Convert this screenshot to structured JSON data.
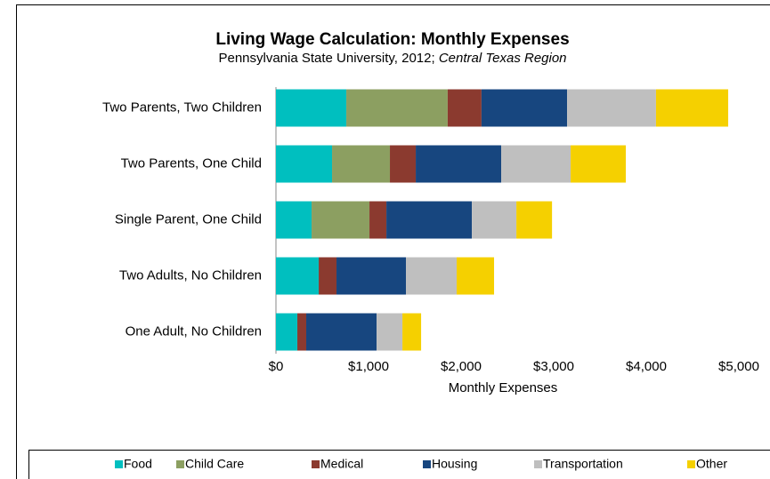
{
  "chart_data": {
    "type": "stacked-barh",
    "title": "Living Wage Calculation: Monthly Expenses",
    "subtitle": "Pennsylvania State University, 2012; ",
    "subtitle_region": "Central Texas Region",
    "xlabel": "Monthly Expenses",
    "categories": [
      "Two Parents, Two Children",
      "Two Parents, One Child",
      "Single Parent, One Child",
      "Two Adults, No Children",
      "One Adult, No Children"
    ],
    "series": [
      {
        "name": "Food",
        "color": "#00bfbf",
        "values": [
          760,
          606,
          385,
          462,
          231
        ]
      },
      {
        "name": "Child Care",
        "color": "#8c9f61",
        "values": [
          1095,
          625,
          625,
          0,
          0
        ]
      },
      {
        "name": "Medical",
        "color": "#8b3a2f",
        "values": [
          365,
          279,
          183,
          192,
          96
        ]
      },
      {
        "name": "Housing",
        "color": "#17467f",
        "values": [
          925,
          923,
          923,
          750,
          760
        ]
      },
      {
        "name": "Transportation",
        "color": "#bfbfbf",
        "values": [
          960,
          750,
          481,
          548,
          279
        ]
      },
      {
        "name": "Other",
        "color": "#f5d000",
        "values": [
          780,
          596,
          385,
          404,
          202
        ]
      }
    ],
    "xlim": [
      0,
      5000
    ],
    "xticks": [
      {
        "value": 0,
        "label": "$0"
      },
      {
        "value": 1000,
        "label": "$1,000"
      },
      {
        "value": 2000,
        "label": "$2,000"
      },
      {
        "value": 3000,
        "label": "$3,000"
      },
      {
        "value": 4000,
        "label": "$4,000"
      },
      {
        "value": 5000,
        "label": "$5,000"
      }
    ],
    "legend": "bottom"
  }
}
